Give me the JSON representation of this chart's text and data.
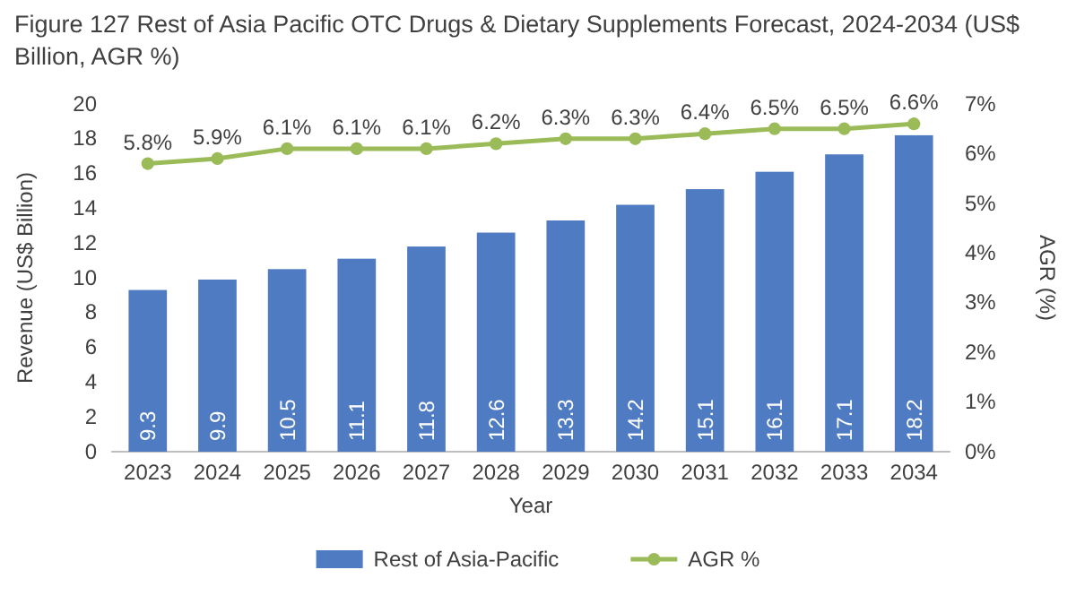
{
  "chart_data": {
    "type": "bar",
    "title": "Figure 127 Rest of Asia Pacific OTC Drugs & Dietary Supplements Forecast, 2024-2034 (US$ Billion, AGR %)",
    "xlabel": "Year",
    "ylabel": "Revenue (US$ Billion)",
    "y2label": "AGR (%)",
    "categories": [
      "2023",
      "2024",
      "2025",
      "2026",
      "2027",
      "2028",
      "2029",
      "2030",
      "2031",
      "2032",
      "2033",
      "2034"
    ],
    "series": [
      {
        "name": "Rest of Asia-Pacific",
        "color": "#4f7bc2",
        "values": [
          9.3,
          9.9,
          10.5,
          11.1,
          11.8,
          12.6,
          13.3,
          14.2,
          15.1,
          16.1,
          17.1,
          18.2
        ],
        "value_labels": [
          "9.3",
          "9.9",
          "10.5",
          "11.1",
          "11.8",
          "12.6",
          "13.3",
          "14.2",
          "15.1",
          "16.1",
          "17.1",
          "18.2"
        ]
      },
      {
        "name": "AGR %",
        "type": "line",
        "axis": "y2",
        "color": "#9bbb59",
        "values": [
          5.8,
          5.9,
          6.1,
          6.1,
          6.1,
          6.2,
          6.3,
          6.3,
          6.4,
          6.5,
          6.5,
          6.6
        ],
        "value_labels": [
          "5.8%",
          "5.9%",
          "6.1%",
          "6.1%",
          "6.1%",
          "6.2%",
          "6.3%",
          "6.3%",
          "6.4%",
          "6.5%",
          "6.5%",
          "6.6%"
        ]
      }
    ],
    "ylim": [
      0,
      20
    ],
    "yticks": [
      0,
      2,
      4,
      6,
      8,
      10,
      12,
      14,
      16,
      18,
      20
    ],
    "y2lim": [
      0,
      7
    ],
    "y2ticks": [
      {
        "value": 0,
        "label": "0%"
      },
      {
        "value": 1,
        "label": "1%"
      },
      {
        "value": 2,
        "label": "2%"
      },
      {
        "value": 3,
        "label": "3%"
      },
      {
        "value": 4,
        "label": "4%"
      },
      {
        "value": 5,
        "label": "5%"
      },
      {
        "value": 6,
        "label": "6%"
      },
      {
        "value": 7,
        "label": "7%"
      }
    ],
    "marker": "circle",
    "legend": "bottom"
  }
}
